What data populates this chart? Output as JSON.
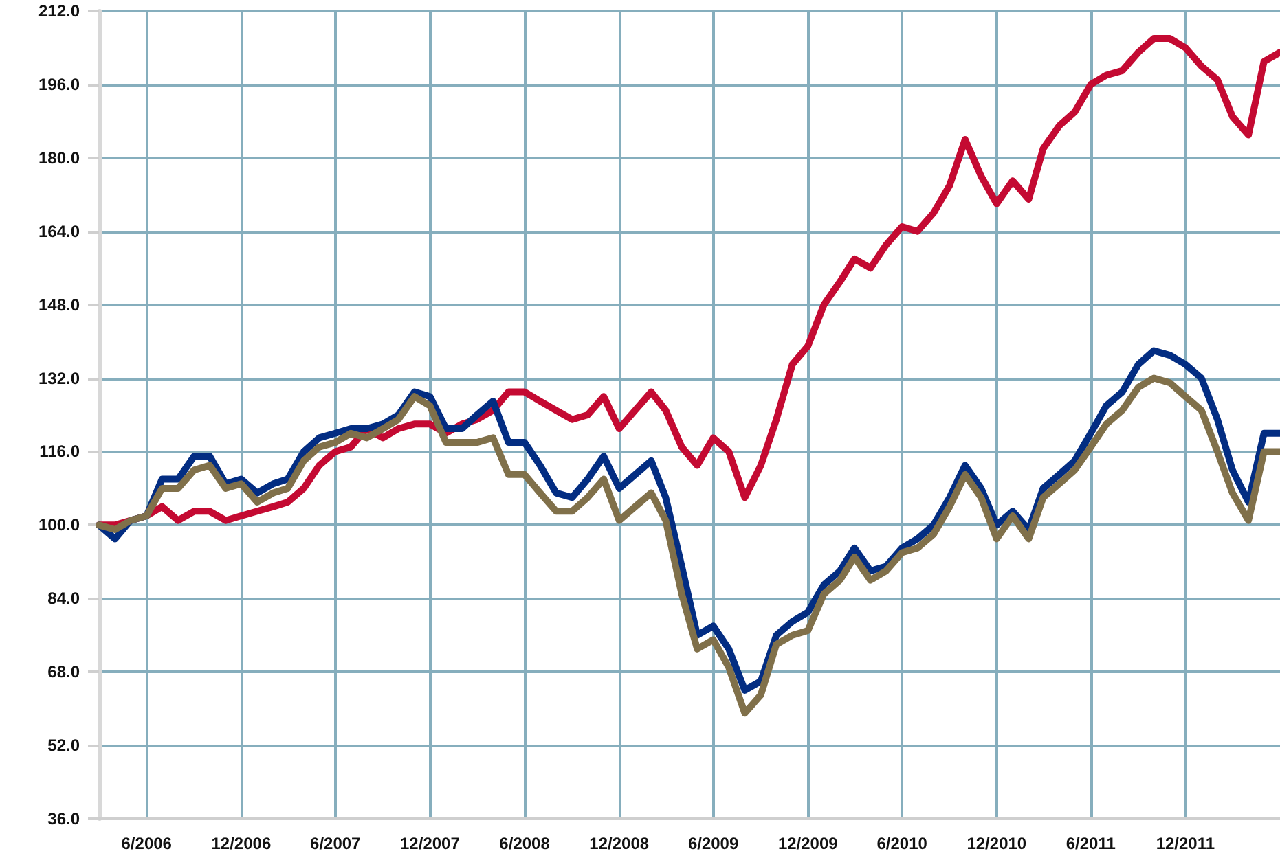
{
  "chart_data": {
    "type": "line",
    "x": [
      "2006-03",
      "2006-04",
      "2006-05",
      "2006-06",
      "2006-07",
      "2006-08",
      "2006-09",
      "2006-10",
      "2006-11",
      "2006-12",
      "2007-01",
      "2007-02",
      "2007-03",
      "2007-04",
      "2007-05",
      "2007-06",
      "2007-07",
      "2007-08",
      "2007-09",
      "2007-10",
      "2007-11",
      "2007-12",
      "2008-01",
      "2008-02",
      "2008-03",
      "2008-04",
      "2008-05",
      "2008-06",
      "2008-07",
      "2008-08",
      "2008-09",
      "2008-10",
      "2008-11",
      "2008-12",
      "2009-01",
      "2009-02",
      "2009-03",
      "2009-04",
      "2009-05",
      "2009-06",
      "2009-07",
      "2009-08",
      "2009-09",
      "2009-10",
      "2009-11",
      "2009-12",
      "2010-01",
      "2010-02",
      "2010-03",
      "2010-04",
      "2010-05",
      "2010-06",
      "2010-07",
      "2010-08",
      "2010-09",
      "2010-10",
      "2010-11",
      "2010-12",
      "2011-01",
      "2011-02",
      "2011-03",
      "2011-04",
      "2011-05",
      "2011-06",
      "2011-07",
      "2011-08",
      "2011-09",
      "2011-10",
      "2011-11",
      "2011-12",
      "2012-01",
      "2012-02",
      "2012-03",
      "2012-04",
      "2012-05",
      "2012-06"
    ],
    "series": [
      {
        "color": "#c40a32",
        "values": [
          100,
          100,
          101,
          102,
          104,
          101,
          103,
          103,
          101,
          102,
          103,
          104,
          105,
          108,
          113,
          116,
          117,
          121,
          119,
          121,
          122,
          122,
          120,
          122,
          123,
          125,
          129,
          129,
          127,
          125,
          123,
          124,
          128,
          121,
          125,
          129,
          125,
          117,
          113,
          119,
          116,
          106,
          113,
          123,
          135,
          139,
          148,
          153,
          158,
          156,
          161,
          165,
          164,
          168,
          174,
          184,
          176,
          170,
          175,
          171,
          182,
          187,
          190,
          196,
          198,
          199,
          203,
          206,
          206,
          204,
          200,
          197,
          189,
          185,
          201,
          203
        ]
      },
      {
        "color": "#032d82",
        "values": [
          100,
          97,
          101,
          102,
          110,
          110,
          115,
          115,
          109,
          110,
          107,
          109,
          110,
          116,
          119,
          120,
          121,
          121,
          122,
          124,
          129,
          128,
          121,
          121,
          124,
          127,
          118,
          118,
          113,
          107,
          106,
          110,
          115,
          108,
          111,
          114,
          106,
          91,
          76,
          78,
          73,
          64,
          66,
          76,
          79,
          81,
          87,
          90,
          95,
          90,
          91,
          95,
          97,
          100,
          106,
          113,
          108,
          100,
          103,
          99,
          108,
          111,
          114,
          120,
          126,
          129,
          135,
          138,
          137,
          135,
          132,
          123,
          112,
          105,
          120,
          120
        ]
      },
      {
        "color": "#80704a",
        "values": [
          100,
          99,
          101,
          102,
          108,
          108,
          112,
          113,
          108,
          109,
          105,
          107,
          108,
          114,
          117,
          118,
          120,
          119,
          121,
          123,
          128,
          126,
          118,
          118,
          118,
          119,
          111,
          111,
          107,
          103,
          103,
          106,
          110,
          101,
          104,
          107,
          101,
          85,
          73,
          75,
          69,
          59,
          63,
          74,
          76,
          77,
          85,
          88,
          93,
          88,
          90,
          94,
          95,
          98,
          104,
          111,
          106,
          97,
          102,
          97,
          106,
          109,
          112,
          117,
          122,
          125,
          130,
          132,
          131,
          128,
          125,
          116,
          107,
          101,
          116,
          116
        ]
      }
    ],
    "xlim": [
      "2006-03",
      "2012-06"
    ],
    "xticks": [
      {
        "value": "2006-06",
        "label": "6/2006"
      },
      {
        "value": "2006-12",
        "label": "12/2006"
      },
      {
        "value": "2007-06",
        "label": "6/2007"
      },
      {
        "value": "2007-12",
        "label": "12/2007"
      },
      {
        "value": "2008-06",
        "label": "6/2008"
      },
      {
        "value": "2008-12",
        "label": "12/2008"
      },
      {
        "value": "2009-06",
        "label": "6/2009"
      },
      {
        "value": "2009-12",
        "label": "12/2009"
      },
      {
        "value": "2010-06",
        "label": "6/2010"
      },
      {
        "value": "2010-12",
        "label": "12/2010"
      },
      {
        "value": "2011-06",
        "label": "6/2011"
      },
      {
        "value": "2011-12",
        "label": "12/2011"
      }
    ],
    "ylim": [
      36,
      212
    ],
    "yticks": [
      {
        "value": 36,
        "label": "36.0"
      },
      {
        "value": 52,
        "label": "52.0"
      },
      {
        "value": 68,
        "label": "68.0"
      },
      {
        "value": 84,
        "label": "84.0"
      },
      {
        "value": 100,
        "label": "100.0"
      },
      {
        "value": 116,
        "label": "116.0"
      },
      {
        "value": 132,
        "label": "132.0"
      },
      {
        "value": 148,
        "label": "148.0"
      },
      {
        "value": 164,
        "label": "164.0"
      },
      {
        "value": 180,
        "label": "180.0"
      },
      {
        "value": 196,
        "label": "196.0"
      },
      {
        "value": 212,
        "label": "212.0"
      }
    ],
    "grid": true,
    "marker": "none",
    "line_style": "solid"
  }
}
